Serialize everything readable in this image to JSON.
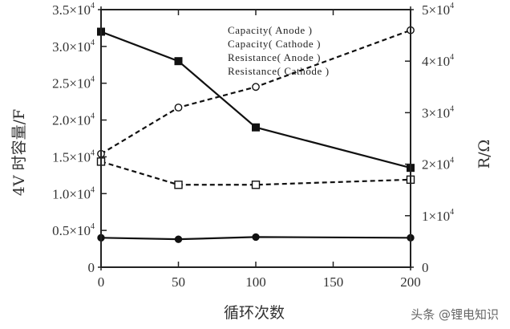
{
  "chart_data": {
    "type": "line",
    "xlabel": "循环次数",
    "ylabel_left": "4V 时容量/F",
    "ylabel_right": "R/Ω",
    "x_ticks": [
      "0",
      "50",
      "100",
      "150",
      "200"
    ],
    "y_left_ticks": [
      {
        "base": "0",
        "exp": ""
      },
      {
        "base": "0.5×10",
        "exp": "4"
      },
      {
        "base": "1.0×10",
        "exp": "4"
      },
      {
        "base": "1.5×10",
        "exp": "4"
      },
      {
        "base": "2.0×10",
        "exp": "4"
      },
      {
        "base": "2.5×10",
        "exp": "4"
      },
      {
        "base": "3.0×10",
        "exp": "4"
      },
      {
        "base": "3.5×10",
        "exp": "4"
      }
    ],
    "y_right_ticks": [
      {
        "base": "0",
        "exp": ""
      },
      {
        "base": "1×10",
        "exp": "4"
      },
      {
        "base": "2×10",
        "exp": "4"
      },
      {
        "base": "3×10",
        "exp": "4"
      },
      {
        "base": "4×10",
        "exp": "4"
      },
      {
        "base": "5×10",
        "exp": "4"
      }
    ],
    "xlim": [
      0,
      200
    ],
    "ylim_left": [
      0,
      35000
    ],
    "ylim_right": [
      0,
      50000
    ],
    "legend_position": "top-right",
    "series": [
      {
        "name": "Capacity( Anode )",
        "axis": "left",
        "style": "solid",
        "marker": "filled-square",
        "x": [
          0,
          50,
          100,
          200
        ],
        "y": [
          32000,
          28000,
          19000,
          13500
        ]
      },
      {
        "name": "Capacity( Cathode )",
        "axis": "left",
        "style": "solid",
        "marker": "filled-circle",
        "x": [
          0,
          50,
          100,
          200
        ],
        "y": [
          4000,
          3800,
          4100,
          4000
        ]
      },
      {
        "name": "Resistance( Anode )",
        "axis": "right",
        "style": "dashed",
        "marker": "open-circle",
        "x": [
          0,
          50,
          100,
          200
        ],
        "y": [
          22000,
          31000,
          35000,
          46000
        ]
      },
      {
        "name": "Resistance( Cathode )",
        "axis": "right",
        "style": "dashed",
        "marker": "open-square",
        "x": [
          0,
          50,
          100,
          200
        ],
        "y": [
          20500,
          16000,
          16000,
          17000
        ]
      }
    ]
  },
  "watermark": "头条 @锂电知识"
}
